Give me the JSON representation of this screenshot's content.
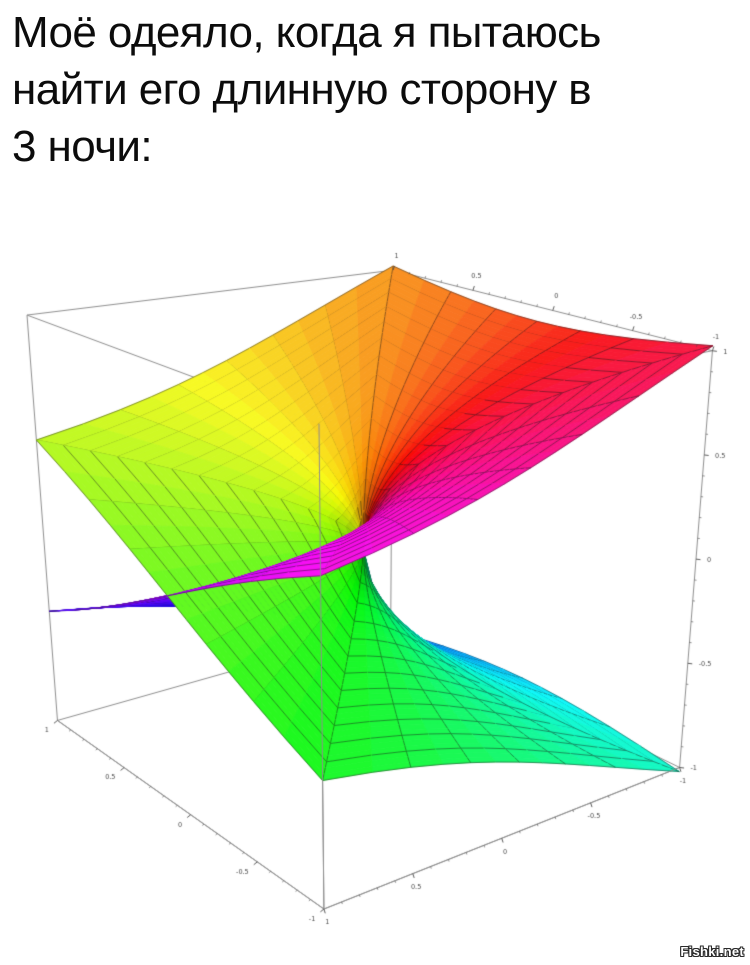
{
  "page": {
    "background": "#ffffff"
  },
  "meme": {
    "caption_lines": [
      "Моё одеяло, когда я пытаюсь",
      "найти его длинную сторону в",
      "3 ночи:"
    ]
  },
  "watermark": {
    "text": "Fishki.net"
  },
  "chart_data": {
    "type": "surface",
    "title": "",
    "description": "Two-sheeted Riemann surface of the complex square root, z = ±Im(√(x+iy)), drawn Mathematica-style inside a wireframe box; polar mesh of radial spokes and concentric rings, rainbow hue by branch angle, sheets cross along the positive x-axis with a funnel at the branch point.",
    "x_range": [
      -1,
      1
    ],
    "y_range": [
      -1,
      1
    ],
    "z_range": [
      -1,
      1
    ],
    "tick_labels": [
      "1",
      "0.5",
      "0",
      "-0.5",
      "-1"
    ],
    "tick_values": [
      1,
      0.5,
      0,
      -0.5,
      -1
    ],
    "minor_tick_step": 0.1,
    "mesh": {
      "radial_spokes_per_revolution": 24,
      "rings_per_sheet": 12
    },
    "colormap": {
      "style": "rainbow-by-branch-angle",
      "hue_start_deg": 100,
      "hue_sweep_deg": -360,
      "upper_sheet_colors": [
        "yellow",
        "orange",
        "red",
        "magenta"
      ],
      "lower_sheet_colors": [
        "violet",
        "blue",
        "cyan",
        "green"
      ]
    },
    "box": {
      "background": "#ffffff",
      "edge_color": "#8f8f8f",
      "tick_color": "#4a4a4a"
    }
  }
}
